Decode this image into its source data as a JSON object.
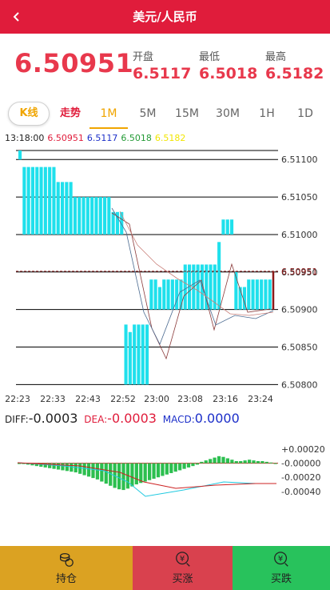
{
  "header": {
    "title": "美元/人民币"
  },
  "quote": {
    "last": "6.50951",
    "open_label": "开盘",
    "open_value": "6.5117",
    "low_label": "最低",
    "low_value": "6.5018",
    "high_label": "最高",
    "high_value": "6.5182"
  },
  "tabs": {
    "kline": "K线",
    "trend": "走势",
    "intervals": [
      "1M",
      "5M",
      "15M",
      "30M",
      "1H",
      "1D"
    ],
    "active": "1M"
  },
  "ohlc": {
    "time": "13:18:00",
    "v1": "6.50951",
    "v2": "6.5117",
    "v3": "6.5018",
    "v4": "6.5182"
  },
  "colors": {
    "accent": "#e01c3b",
    "bar": "#1fe0ec",
    "open": "#1c2fc9",
    "low": "#239a35",
    "high": "#f2e600"
  },
  "chart_data": [
    {
      "type": "bar",
      "x_tick_labels": [
        "22:23",
        "22:33",
        "22:43",
        "22:52",
        "23:00",
        "23:08",
        "23:16",
        "23:24"
      ],
      "y_tick_labels": [
        "6.51100",
        "6.51050",
        "6.51000",
        "6.50950",
        "6.50900",
        "6.50850",
        "6.50800"
      ],
      "ylim": [
        6.50794,
        6.51112
      ],
      "current_price_label": "6.50951",
      "bars": [
        [
          6.511,
          6.51112
        ],
        [
          6.51,
          6.5109
        ],
        [
          6.51,
          6.5109
        ],
        [
          6.51,
          6.5109
        ],
        [
          6.51,
          6.5109
        ],
        [
          6.51,
          6.5109
        ],
        [
          6.51,
          6.5109
        ],
        [
          6.51,
          6.5109
        ],
        [
          6.51,
          6.5109
        ],
        [
          6.51,
          6.5107
        ],
        [
          6.51,
          6.5107
        ],
        [
          6.51,
          6.5107
        ],
        [
          6.51,
          6.5107
        ],
        [
          6.51,
          6.5105
        ],
        [
          6.51,
          6.5105
        ],
        [
          6.51,
          6.5105
        ],
        [
          6.51,
          6.5105
        ],
        [
          6.51,
          6.5105
        ],
        [
          6.51,
          6.5105
        ],
        [
          6.51,
          6.5105
        ],
        [
          6.51,
          6.5105
        ],
        [
          6.51,
          6.5105
        ],
        [
          6.51,
          6.5103
        ],
        [
          6.51,
          6.5103
        ],
        [
          6.51,
          6.5103
        ],
        [
          6.508,
          6.5088
        ],
        [
          6.508,
          6.5087
        ],
        [
          6.508,
          6.5088
        ],
        [
          6.508,
          6.5088
        ],
        [
          6.508,
          6.5088
        ],
        [
          6.508,
          6.5088
        ],
        [
          6.509,
          6.5094
        ],
        [
          6.509,
          6.5094
        ],
        [
          6.509,
          6.5093
        ],
        [
          6.509,
          6.5094
        ],
        [
          6.509,
          6.5094
        ],
        [
          6.509,
          6.5094
        ],
        [
          6.509,
          6.5094
        ],
        [
          6.509,
          6.5094
        ],
        [
          6.509,
          6.5096
        ],
        [
          6.509,
          6.5096
        ],
        [
          6.509,
          6.5096
        ],
        [
          6.509,
          6.5096
        ],
        [
          6.509,
          6.5096
        ],
        [
          6.509,
          6.5096
        ],
        [
          6.509,
          6.5096
        ],
        [
          6.509,
          6.5096
        ],
        [
          6.509,
          6.5099
        ],
        [
          6.51,
          6.5102
        ],
        [
          6.51,
          6.5102
        ],
        [
          6.51,
          6.5102
        ],
        [
          6.509,
          6.5095
        ],
        [
          6.509,
          6.5093
        ],
        [
          6.509,
          6.5093
        ],
        [
          6.509,
          6.5094
        ],
        [
          6.509,
          6.5094
        ],
        [
          6.509,
          6.5094
        ],
        [
          6.509,
          6.5094
        ],
        [
          6.509,
          6.5094
        ],
        [
          6.509,
          6.5094
        ]
      ]
    },
    {
      "type": "bar",
      "y_tick_labels": [
        "+0.00020",
        "-0.00000",
        "-0.00020",
        "-0.00040"
      ],
      "ylim": [
        -0.00047,
        0.00028
      ],
      "diff_label": "DIFF:",
      "diff_value": "-0.0003",
      "dea_label": "DEA:",
      "dea_value": "-0.0003",
      "macd_label": "MACD:",
      "macd_value": "0.0000",
      "macd_bars": [
        -5e-06,
        -1e-05,
        -2e-05,
        -3e-05,
        -4e-05,
        -5e-05,
        -6e-05,
        -7e-05,
        -8e-05,
        -9e-05,
        -0.0001,
        -0.00011,
        -0.00012,
        -0.00013,
        -0.00015,
        -0.00017,
        -0.00019,
        -0.00021,
        -0.00023,
        -0.00026,
        -0.00029,
        -0.00032,
        -0.00035,
        -0.00037,
        -0.00038,
        -0.00036,
        -0.00033,
        -0.0003,
        -0.00028,
        -0.00026,
        -0.00024,
        -0.00022,
        -0.0002,
        -0.00018,
        -0.00016,
        -0.00014,
        -0.00012,
        -0.0001,
        -8e-05,
        -6e-05,
        -4e-05,
        -2e-05,
        2e-05,
        4e-05,
        6e-05,
        8e-05,
        0.0001,
        9e-05,
        7e-05,
        5e-05,
        3e-05,
        3e-05,
        4e-05,
        5e-05,
        4e-05,
        3e-05,
        3e-05,
        2e-05,
        1e-05,
        -1e-05
      ]
    }
  ],
  "bottom": {
    "hold": "持仓",
    "sell": "买涨",
    "buy": "买跌"
  }
}
